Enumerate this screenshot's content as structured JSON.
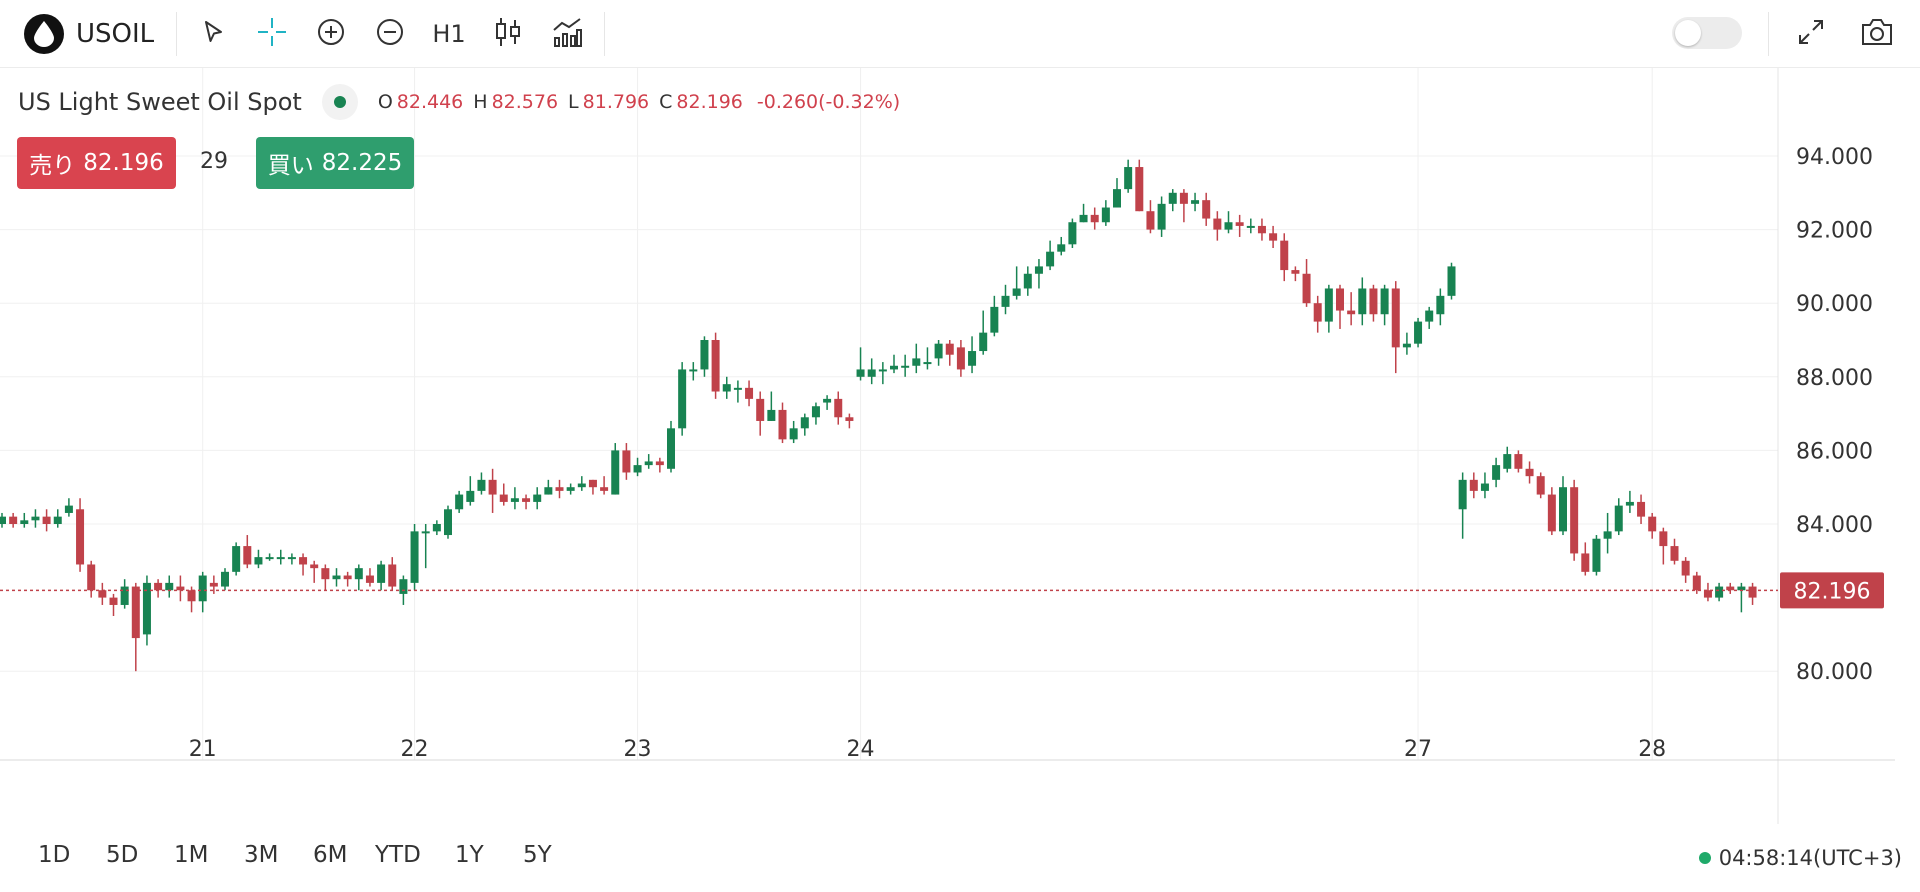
{
  "toolbar": {
    "symbol": "USOIL",
    "interval": "H1",
    "icons": [
      "oil-drop-icon",
      "cursor-icon",
      "crosshair-icon",
      "zoom-in-icon",
      "zoom-out-icon",
      "candlestick-icon",
      "indicators-icon",
      "fullscreen-icon",
      "camera-icon"
    ]
  },
  "legend": {
    "title": "US Light Sweet Oil Spot",
    "o_label": "O",
    "o": "82.446",
    "h_label": "H",
    "h": "82.576",
    "l_label": "L",
    "l": "81.796",
    "c_label": "C",
    "c": "82.196",
    "change": "-0.260(-0.32%)"
  },
  "trade": {
    "sell_label": "売り",
    "sell_price": "82.196",
    "spread": "29",
    "buy_label": "買い",
    "buy_price": "82.225"
  },
  "ranges": [
    "1D",
    "5D",
    "1M",
    "3M",
    "6M",
    "YTD",
    "1Y",
    "5Y"
  ],
  "clock": "04:58:14(UTC+3)",
  "colors": {
    "up": "#188352",
    "down": "#c0424a",
    "price_line": "#c0424a",
    "grid": "#f0f0f0"
  },
  "chart_data": {
    "type": "candlestick",
    "y_ticks": [
      "94.000",
      "92.000",
      "90.000",
      "88.000",
      "86.000",
      "84.000",
      "80.000"
    ],
    "y_tick_values": [
      94,
      92,
      90,
      88,
      86,
      84,
      80
    ],
    "ylim": [
      77.6,
      95.1
    ],
    "x_tick_labels": [
      "21",
      "22",
      "23",
      "24",
      "27",
      "28"
    ],
    "last_price": 82.196,
    "last_price_label": "82.196",
    "candles": [
      [
        84.0,
        84.2,
        84.3,
        83.9
      ],
      [
        84.2,
        84.0,
        84.3,
        83.9
      ],
      [
        84.0,
        84.1,
        84.3,
        83.9
      ],
      [
        84.1,
        84.2,
        84.4,
        83.9
      ],
      [
        84.2,
        84.0,
        84.4,
        83.8
      ],
      [
        84.0,
        84.2,
        84.4,
        83.9
      ],
      [
        84.3,
        84.5,
        84.7,
        84.2
      ],
      [
        84.4,
        82.9,
        84.7,
        82.7
      ],
      [
        82.9,
        82.2,
        83.0,
        82.0
      ],
      [
        82.2,
        82.0,
        82.4,
        81.8
      ],
      [
        82.0,
        81.8,
        82.1,
        81.5
      ],
      [
        81.8,
        82.3,
        82.5,
        81.7
      ],
      [
        82.3,
        80.9,
        82.4,
        80.0
      ],
      [
        81.0,
        82.4,
        82.6,
        80.7
      ],
      [
        82.4,
        82.2,
        82.5,
        82.0
      ],
      [
        82.2,
        82.4,
        82.6,
        82.0
      ],
      [
        82.3,
        82.2,
        82.6,
        81.9
      ],
      [
        82.2,
        81.9,
        82.3,
        81.6
      ],
      [
        81.9,
        82.6,
        82.7,
        81.6
      ],
      [
        82.4,
        82.3,
        82.6,
        82.1
      ],
      [
        82.3,
        82.7,
        82.8,
        82.2
      ],
      [
        82.7,
        83.4,
        83.5,
        82.6
      ],
      [
        83.4,
        82.9,
        83.7,
        82.8
      ],
      [
        82.9,
        83.1,
        83.3,
        82.8
      ],
      [
        83.1,
        83.1,
        83.2,
        83.0
      ],
      [
        83.1,
        83.1,
        83.3,
        82.9
      ],
      [
        83.1,
        83.1,
        83.2,
        82.9
      ],
      [
        83.1,
        82.9,
        83.2,
        82.6
      ],
      [
        82.9,
        82.8,
        83.0,
        82.4
      ],
      [
        82.8,
        82.5,
        82.9,
        82.2
      ],
      [
        82.5,
        82.6,
        82.8,
        82.3
      ],
      [
        82.6,
        82.5,
        82.7,
        82.3
      ],
      [
        82.5,
        82.8,
        82.9,
        82.2
      ],
      [
        82.6,
        82.4,
        82.8,
        82.3
      ],
      [
        82.4,
        82.9,
        83.0,
        82.2
      ],
      [
        82.9,
        82.3,
        83.1,
        82.2
      ],
      [
        82.1,
        82.5,
        82.6,
        81.8
      ],
      [
        82.4,
        83.8,
        84.0,
        82.2
      ],
      [
        83.8,
        83.8,
        84.0,
        82.8
      ],
      [
        83.8,
        84.0,
        84.1,
        83.7
      ],
      [
        83.7,
        84.4,
        84.5,
        83.6
      ],
      [
        84.4,
        84.8,
        84.9,
        84.3
      ],
      [
        84.6,
        84.9,
        85.3,
        84.5
      ],
      [
        84.9,
        85.2,
        85.4,
        84.8
      ],
      [
        85.2,
        84.8,
        85.5,
        84.3
      ],
      [
        84.8,
        84.6,
        85.1,
        84.5
      ],
      [
        84.6,
        84.7,
        85.0,
        84.4
      ],
      [
        84.7,
        84.6,
        84.8,
        84.4
      ],
      [
        84.6,
        84.8,
        85.0,
        84.4
      ],
      [
        84.8,
        85.0,
        85.2,
        84.8
      ],
      [
        85.0,
        84.9,
        85.2,
        84.7
      ],
      [
        84.9,
        85.0,
        85.1,
        84.8
      ],
      [
        85.0,
        85.1,
        85.3,
        84.9
      ],
      [
        85.2,
        85.0,
        85.2,
        84.8
      ],
      [
        85.0,
        84.9,
        85.3,
        84.8
      ],
      [
        84.8,
        86.0,
        86.2,
        84.8
      ],
      [
        86.0,
        85.4,
        86.2,
        85.2
      ],
      [
        85.4,
        85.6,
        85.8,
        85.3
      ],
      [
        85.6,
        85.7,
        85.9,
        85.5
      ],
      [
        85.7,
        85.6,
        85.8,
        85.4
      ],
      [
        85.5,
        86.6,
        86.8,
        85.4
      ],
      [
        86.6,
        88.2,
        88.4,
        86.4
      ],
      [
        88.2,
        88.2,
        88.4,
        87.9
      ],
      [
        88.2,
        89.0,
        89.1,
        88.0
      ],
      [
        89.0,
        87.6,
        89.2,
        87.4
      ],
      [
        87.6,
        87.8,
        88.0,
        87.4
      ],
      [
        87.7,
        87.7,
        87.9,
        87.3
      ],
      [
        87.7,
        87.4,
        87.9,
        87.2
      ],
      [
        87.4,
        86.8,
        87.6,
        86.4
      ],
      [
        86.8,
        87.1,
        87.6,
        86.8
      ],
      [
        87.1,
        86.3,
        87.3,
        86.2
      ],
      [
        86.3,
        86.6,
        86.8,
        86.2
      ],
      [
        86.6,
        86.9,
        87.0,
        86.4
      ],
      [
        86.9,
        87.2,
        87.3,
        86.7
      ],
      [
        87.3,
        87.4,
        87.5,
        87.1
      ],
      [
        87.4,
        86.9,
        87.6,
        86.7
      ],
      [
        86.9,
        86.8,
        87.0,
        86.6
      ],
      [
        88.0,
        88.2,
        88.8,
        87.9
      ],
      [
        88.0,
        88.2,
        88.5,
        87.8
      ],
      [
        88.2,
        88.2,
        88.4,
        87.8
      ],
      [
        88.2,
        88.3,
        88.6,
        88.1
      ],
      [
        88.3,
        88.3,
        88.6,
        88.0
      ],
      [
        88.3,
        88.5,
        88.9,
        88.1
      ],
      [
        88.4,
        88.4,
        88.8,
        88.2
      ],
      [
        88.5,
        88.9,
        89.0,
        88.3
      ],
      [
        88.9,
        88.6,
        89.0,
        88.3
      ],
      [
        88.8,
        88.2,
        89.0,
        88.0
      ],
      [
        88.3,
        88.7,
        89.1,
        88.1
      ],
      [
        88.7,
        89.2,
        89.8,
        88.6
      ],
      [
        89.2,
        89.9,
        90.2,
        89.1
      ],
      [
        89.9,
        90.2,
        90.5,
        89.7
      ],
      [
        90.2,
        90.4,
        91.0,
        90.1
      ],
      [
        90.4,
        90.8,
        91.0,
        90.2
      ],
      [
        90.8,
        91.0,
        91.2,
        90.4
      ],
      [
        91.0,
        91.4,
        91.7,
        90.9
      ],
      [
        91.4,
        91.6,
        91.8,
        91.3
      ],
      [
        91.6,
        92.2,
        92.3,
        91.5
      ],
      [
        92.2,
        92.4,
        92.7,
        92.2
      ],
      [
        92.4,
        92.2,
        92.6,
        92.0
      ],
      [
        92.2,
        92.6,
        92.8,
        92.1
      ],
      [
        92.6,
        93.1,
        93.4,
        92.6
      ],
      [
        93.1,
        93.7,
        93.9,
        93.0
      ],
      [
        93.7,
        92.5,
        93.9,
        92.5
      ],
      [
        92.5,
        92.0,
        92.8,
        91.9
      ],
      [
        92.0,
        92.7,
        92.9,
        91.8
      ],
      [
        92.7,
        93.0,
        93.1,
        92.5
      ],
      [
        93.0,
        92.7,
        93.1,
        92.2
      ],
      [
        92.7,
        92.8,
        93.0,
        92.5
      ],
      [
        92.8,
        92.3,
        93.0,
        92.1
      ],
      [
        92.3,
        92.0,
        92.5,
        91.7
      ],
      [
        92.0,
        92.2,
        92.5,
        91.9
      ],
      [
        92.2,
        92.1,
        92.4,
        91.8
      ],
      [
        92.1,
        92.1,
        92.3,
        91.9
      ],
      [
        92.1,
        91.9,
        92.3,
        91.7
      ],
      [
        91.9,
        91.7,
        92.1,
        91.5
      ],
      [
        91.7,
        90.9,
        91.9,
        90.6
      ],
      [
        90.9,
        90.8,
        91.0,
        90.6
      ],
      [
        90.8,
        90.0,
        91.2,
        89.9
      ],
      [
        90.0,
        89.5,
        90.2,
        89.2
      ],
      [
        89.5,
        90.4,
        90.5,
        89.2
      ],
      [
        90.4,
        89.8,
        90.5,
        89.3
      ],
      [
        89.8,
        89.7,
        90.3,
        89.4
      ],
      [
        89.7,
        90.4,
        90.7,
        89.4
      ],
      [
        90.4,
        89.7,
        90.5,
        89.5
      ],
      [
        89.7,
        90.4,
        90.5,
        89.4
      ],
      [
        90.4,
        88.8,
        90.6,
        88.1
      ],
      [
        88.8,
        88.9,
        89.2,
        88.6
      ],
      [
        88.9,
        89.5,
        89.6,
        88.8
      ],
      [
        89.5,
        89.8,
        89.9,
        89.3
      ],
      [
        89.7,
        90.2,
        90.4,
        89.4
      ],
      [
        90.2,
        91.0,
        91.1,
        90.1
      ],
      [
        84.4,
        85.2,
        85.4,
        83.6
      ],
      [
        85.2,
        84.9,
        85.4,
        84.7
      ],
      [
        84.9,
        85.1,
        85.4,
        84.7
      ],
      [
        85.2,
        85.6,
        85.8,
        85.0
      ],
      [
        85.5,
        85.9,
        86.1,
        85.4
      ],
      [
        85.9,
        85.5,
        86.0,
        85.4
      ],
      [
        85.5,
        85.3,
        85.7,
        85.1
      ],
      [
        85.3,
        84.8,
        85.4,
        84.7
      ],
      [
        84.8,
        83.8,
        85.0,
        83.7
      ],
      [
        83.8,
        85.0,
        85.3,
        83.7
      ],
      [
        85.0,
        83.2,
        85.2,
        83.0
      ],
      [
        83.2,
        82.7,
        83.5,
        82.6
      ],
      [
        82.7,
        83.6,
        83.7,
        82.6
      ],
      [
        83.6,
        83.8,
        84.3,
        83.2
      ],
      [
        83.8,
        84.5,
        84.7,
        83.7
      ],
      [
        84.5,
        84.6,
        84.9,
        84.3
      ],
      [
        84.6,
        84.2,
        84.8,
        84.0
      ],
      [
        84.2,
        83.8,
        84.3,
        83.6
      ],
      [
        83.8,
        83.4,
        83.9,
        82.9
      ],
      [
        83.4,
        83.0,
        83.6,
        82.9
      ],
      [
        83.0,
        82.6,
        83.1,
        82.4
      ],
      [
        82.6,
        82.2,
        82.7,
        82.1
      ],
      [
        82.2,
        82.0,
        82.4,
        81.9
      ],
      [
        82.0,
        82.3,
        82.4,
        81.9
      ],
      [
        82.3,
        82.2,
        82.4,
        82.1
      ],
      [
        82.2,
        82.3,
        82.4,
        81.6
      ],
      [
        82.3,
        82.0,
        82.4,
        81.8
      ]
    ]
  }
}
